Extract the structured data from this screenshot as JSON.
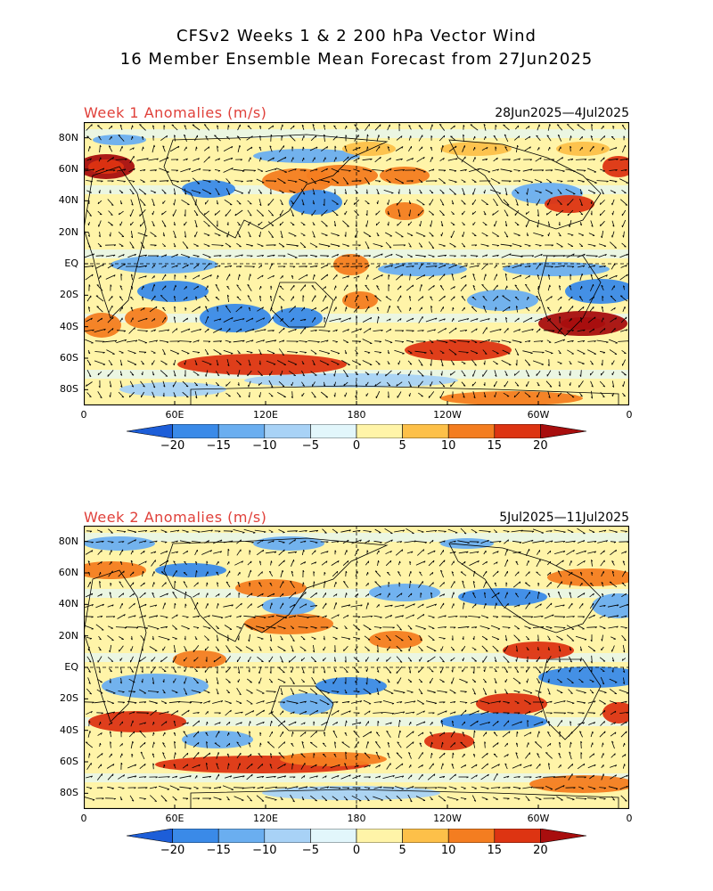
{
  "title": {
    "line1": "CFSv2 Weeks 1 & 2 200 hPa Vector Wind",
    "line2": "16 Member Ensemble Mean Forecast from 27Jun2025"
  },
  "panels": [
    {
      "label": "Week 1 Anomalies (m/s)",
      "date_range": "28Jun2025—4Jul2025"
    },
    {
      "label": "Week 2 Anomalies (m/s)",
      "date_range": "5Jul2025—11Jul2025"
    }
  ],
  "lat_labels": [
    "80N",
    "60N",
    "40N",
    "20N",
    "EQ",
    "20S",
    "40S",
    "60S",
    "80S"
  ],
  "lon_labels": [
    "0",
    "60E",
    "120E",
    "180",
    "120W",
    "60W",
    "0"
  ],
  "colorbar": {
    "labels": [
      "−20",
      "−15",
      "−10",
      "−5",
      "0",
      "5",
      "10",
      "15",
      "20"
    ],
    "colors": [
      "#1d5ed8",
      "#3a8ae8",
      "#6aaef0",
      "#a8d2f6",
      "#e2f6fb",
      "#fff4a8",
      "#fdc049",
      "#f47d20",
      "#dd3412",
      "#a80e0e"
    ]
  }
}
